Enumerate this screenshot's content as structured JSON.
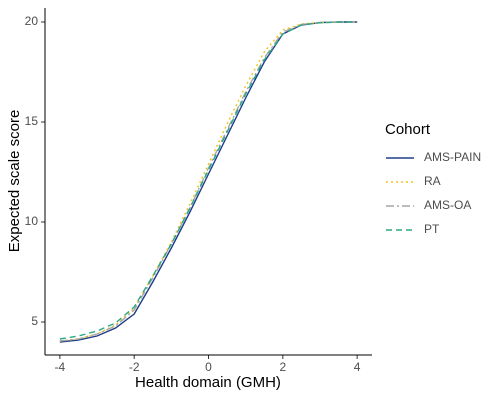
{
  "chart_data": {
    "type": "line",
    "x_label": "Health domain (GMH)",
    "y_label": "Expected scale score",
    "x": [
      -4,
      -3.5,
      -3,
      -2.5,
      -2,
      -1.5,
      -1,
      -0.5,
      0,
      0.5,
      1,
      1.5,
      2,
      2.5,
      3,
      3.5,
      4
    ],
    "series": [
      {
        "name": "AMS-PAIN",
        "color": "#1f3d8c",
        "linestyle": "solid",
        "values": [
          4.0,
          4.1,
          4.3,
          4.7,
          5.4,
          7.0,
          8.7,
          10.5,
          12.4,
          14.3,
          16.2,
          18.0,
          19.4,
          19.85,
          19.97,
          20.0,
          20.0
        ]
      },
      {
        "name": "RA",
        "color": "#f0c419",
        "linestyle": "dotted",
        "values": [
          4.05,
          4.15,
          4.4,
          4.85,
          5.7,
          7.3,
          9.0,
          10.9,
          12.9,
          14.9,
          16.8,
          18.5,
          19.6,
          19.9,
          19.98,
          20.0,
          20.0
        ]
      },
      {
        "name": "AMS-OA",
        "color": "#a6a6a6",
        "linestyle": "longdash",
        "values": [
          4.05,
          4.15,
          4.4,
          4.8,
          5.6,
          7.2,
          8.9,
          10.7,
          12.7,
          14.6,
          16.5,
          18.2,
          19.5,
          19.88,
          19.97,
          20.0,
          20.0
        ]
      },
      {
        "name": "PT",
        "color": "#2aa884",
        "linestyle": "dashed",
        "values": [
          4.15,
          4.3,
          4.55,
          4.95,
          5.75,
          7.3,
          8.9,
          10.7,
          12.6,
          14.5,
          16.4,
          18.1,
          19.4,
          19.85,
          19.96,
          20.0,
          20.0
        ]
      }
    ],
    "xlim": [
      -4.4,
      4.4
    ],
    "ylim": [
      3.35,
      20.7
    ],
    "xticks": [
      -4,
      -2,
      0,
      2,
      4
    ],
    "yticks": [
      5,
      10,
      15,
      20
    ],
    "legend_title": "Cohort",
    "legend": "right",
    "grid": false
  }
}
